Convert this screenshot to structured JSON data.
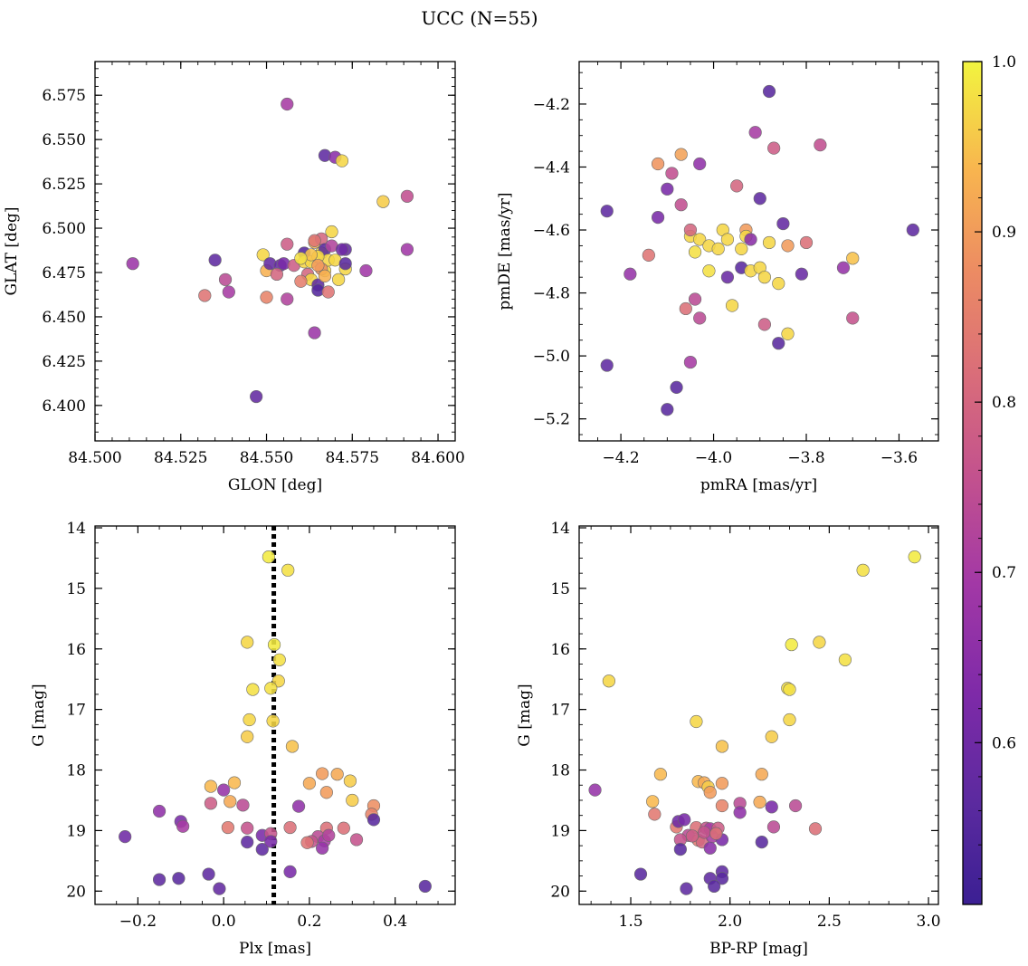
{
  "chart_title": "UCC (N=55)",
  "colorbar": {
    "range": [
      0.505,
      1.0
    ],
    "ticks": [
      0.6,
      0.7,
      0.8,
      0.9,
      1.0
    ],
    "tick_labels": [
      "0.6",
      "0.7",
      "0.8",
      "0.9",
      "1.0"
    ],
    "colormap": "plasma"
  },
  "chart_data": [
    {
      "type": "scatter",
      "xlabel": "GLON [deg]",
      "ylabel": "GLAT [deg]",
      "xlim": [
        84.5,
        84.605
      ],
      "ylim": [
        6.38,
        6.594
      ],
      "xticks": [
        84.5,
        84.525,
        84.55,
        84.575,
        84.6
      ],
      "xtick_labels": [
        "84.500",
        "84.525",
        "84.550",
        "84.575",
        "84.600"
      ],
      "xminor": 0.005,
      "yticks": [
        6.4,
        6.425,
        6.45,
        6.475,
        6.5,
        6.525,
        6.55,
        6.575
      ],
      "ytick_labels": [
        "6.400",
        "6.425",
        "6.450",
        "6.475",
        "6.500",
        "6.525",
        "6.550",
        "6.575"
      ],
      "yminor": 0.005,
      "invert_y": false,
      "points": [
        [
          84.511,
          6.48,
          0.68
        ],
        [
          84.535,
          6.482,
          0.57
        ],
        [
          84.538,
          6.471,
          0.74
        ],
        [
          84.539,
          6.464,
          0.7
        ],
        [
          84.532,
          6.462,
          0.83
        ],
        [
          84.547,
          6.405,
          0.58
        ],
        [
          84.556,
          6.57,
          0.7
        ],
        [
          84.55,
          6.461,
          0.86
        ],
        [
          84.55,
          6.476,
          0.93
        ],
        [
          84.549,
          6.485,
          0.97
        ],
        [
          84.551,
          6.48,
          0.58
        ],
        [
          84.554,
          6.479,
          0.58
        ],
        [
          84.553,
          6.474,
          0.8
        ],
        [
          84.556,
          6.491,
          0.78
        ],
        [
          84.556,
          6.46,
          0.72
        ],
        [
          84.555,
          6.48,
          0.62
        ],
        [
          84.558,
          6.479,
          0.78
        ],
        [
          84.561,
          6.486,
          0.55
        ],
        [
          84.561,
          6.481,
          0.97
        ],
        [
          84.562,
          6.474,
          0.8
        ],
        [
          84.563,
          6.471,
          0.97
        ],
        [
          84.563,
          6.481,
          0.97
        ],
        [
          84.564,
          6.492,
          0.93
        ],
        [
          84.564,
          6.441,
          0.68
        ],
        [
          84.565,
          6.468,
          0.57
        ],
        [
          84.565,
          6.465,
          0.55
        ],
        [
          84.566,
          6.494,
          0.8
        ],
        [
          84.566,
          6.486,
          0.97
        ],
        [
          84.567,
          6.541,
          0.57
        ],
        [
          84.567,
          6.476,
          0.97
        ],
        [
          84.567,
          6.488,
          0.56
        ],
        [
          84.568,
          6.482,
          0.97
        ],
        [
          84.568,
          6.464,
          0.83
        ],
        [
          84.569,
          6.498,
          0.97
        ],
        [
          84.57,
          6.54,
          0.65
        ],
        [
          84.57,
          6.482,
          0.97
        ],
        [
          84.571,
          6.471,
          0.97
        ],
        [
          84.572,
          6.538,
          0.97
        ],
        [
          84.573,
          6.477,
          0.97
        ],
        [
          84.573,
          6.488,
          0.58
        ],
        [
          84.573,
          6.48,
          0.56
        ],
        [
          84.579,
          6.476,
          0.69
        ],
        [
          84.584,
          6.515,
          0.96
        ],
        [
          84.591,
          6.518,
          0.75
        ],
        [
          84.591,
          6.488,
          0.69
        ],
        [
          84.565,
          6.484,
          0.97
        ],
        [
          84.56,
          6.47,
          0.85
        ],
        [
          84.569,
          6.49,
          0.72
        ],
        [
          84.566,
          6.477,
          0.88
        ],
        [
          84.563,
          6.485,
          0.95
        ],
        [
          84.56,
          6.483,
          0.98
        ],
        [
          84.572,
          6.488,
          0.6
        ],
        [
          84.567,
          6.473,
          0.93
        ],
        [
          84.565,
          6.479,
          0.9
        ],
        [
          84.564,
          6.493,
          0.83
        ]
      ]
    },
    {
      "type": "scatter",
      "xlabel": "pmRA [mas/yr]",
      "ylabel": "pmDE [mas/yr]",
      "xlim": [
        -4.29,
        -3.515
      ],
      "ylim": [
        -5.27,
        -4.065
      ],
      "xticks": [
        -4.2,
        -4.0,
        -3.8,
        -3.6
      ],
      "xtick_labels": [
        "−4.2",
        "−4.0",
        "−3.8",
        "−3.6"
      ],
      "xminor": 0.05,
      "yticks": [
        -5.2,
        -5.0,
        -4.8,
        -4.6,
        -4.4,
        -4.2
      ],
      "ytick_labels": [
        "−5.2",
        "−5.0",
        "−4.8",
        "−4.6",
        "−4.4",
        "−4.2"
      ],
      "yminor": 0.05,
      "invert_y": false,
      "points": [
        [
          -4.23,
          -4.54,
          0.57
        ],
        [
          -4.23,
          -5.03,
          0.57
        ],
        [
          -4.18,
          -4.74,
          0.67
        ],
        [
          -4.14,
          -4.68,
          0.83
        ],
        [
          -4.12,
          -4.39,
          0.89
        ],
        [
          -4.12,
          -4.56,
          0.62
        ],
        [
          -4.1,
          -4.47,
          0.62
        ],
        [
          -4.1,
          -5.17,
          0.56
        ],
        [
          -4.08,
          -5.1,
          0.56
        ],
        [
          -4.09,
          -4.42,
          0.75
        ],
        [
          -4.07,
          -4.36,
          0.91
        ],
        [
          -4.07,
          -4.52,
          0.75
        ],
        [
          -4.06,
          -4.85,
          0.82
        ],
        [
          -4.05,
          -4.62,
          0.97
        ],
        [
          -4.05,
          -4.6,
          0.8
        ],
        [
          -4.04,
          -4.67,
          0.98
        ],
        [
          -4.05,
          -5.02,
          0.7
        ],
        [
          -4.03,
          -4.63,
          0.97
        ],
        [
          -4.04,
          -4.82,
          0.74
        ],
        [
          -4.03,
          -4.88,
          0.74
        ],
        [
          -4.03,
          -4.39,
          0.66
        ],
        [
          -4.01,
          -4.73,
          0.98
        ],
        [
          -4.01,
          -4.65,
          0.97
        ],
        [
          -3.99,
          -4.66,
          0.97
        ],
        [
          -3.98,
          -4.6,
          0.97
        ],
        [
          -3.97,
          -4.75,
          0.59
        ],
        [
          -3.97,
          -4.63,
          0.97
        ],
        [
          -3.96,
          -4.84,
          0.97
        ],
        [
          -3.95,
          -4.46,
          0.8
        ],
        [
          -3.94,
          -4.66,
          0.97
        ],
        [
          -3.94,
          -4.72,
          0.56
        ],
        [
          -3.93,
          -4.6,
          0.9
        ],
        [
          -3.93,
          -4.62,
          0.97
        ],
        [
          -3.92,
          -4.73,
          0.97
        ],
        [
          -3.92,
          -4.63,
          0.65
        ],
        [
          -3.91,
          -4.29,
          0.7
        ],
        [
          -3.9,
          -4.72,
          0.97
        ],
        [
          -3.9,
          -4.5,
          0.57
        ],
        [
          -3.89,
          -4.9,
          0.78
        ],
        [
          -3.89,
          -4.75,
          0.97
        ],
        [
          -3.88,
          -4.16,
          0.56
        ],
        [
          -3.88,
          -4.64,
          0.97
        ],
        [
          -3.87,
          -4.34,
          0.78
        ],
        [
          -3.86,
          -4.77,
          0.97
        ],
        [
          -3.86,
          -4.96,
          0.56
        ],
        [
          -3.85,
          -4.58,
          0.58
        ],
        [
          -3.84,
          -4.65,
          0.9
        ],
        [
          -3.84,
          -4.93,
          0.97
        ],
        [
          -3.81,
          -4.74,
          0.59
        ],
        [
          -3.8,
          -4.64,
          0.82
        ],
        [
          -3.77,
          -4.33,
          0.75
        ],
        [
          -3.72,
          -4.72,
          0.67
        ],
        [
          -3.7,
          -4.88,
          0.76
        ],
        [
          -3.7,
          -4.69,
          0.95
        ],
        [
          -3.57,
          -4.6,
          0.57
        ]
      ]
    },
    {
      "type": "scatter",
      "xlabel": "Plx [mas]",
      "ylabel": "G [mag]",
      "xlim": [
        -0.3,
        0.54
      ],
      "ylim": [
        20.22,
        13.97
      ],
      "xticks": [
        -0.2,
        0.0,
        0.2,
        0.4
      ],
      "xtick_labels": [
        "−0.2",
        "0.0",
        "0.2",
        "0.4"
      ],
      "xminor": 0.05,
      "yticks": [
        14,
        15,
        16,
        17,
        18,
        19,
        20
      ],
      "ytick_labels": [
        "14",
        "15",
        "16",
        "17",
        "18",
        "19",
        "20"
      ],
      "yminor": 0.25,
      "invert_y": true,
      "vline": 0.117,
      "points": [
        [
          0.105,
          14.48,
          0.99
        ],
        [
          0.15,
          14.7,
          0.98
        ],
        [
          0.055,
          15.89,
          0.97
        ],
        [
          0.118,
          15.93,
          0.99
        ],
        [
          0.13,
          16.18,
          0.98
        ],
        [
          0.128,
          16.53,
          0.97
        ],
        [
          0.068,
          16.67,
          0.98
        ],
        [
          0.11,
          16.65,
          0.98
        ],
        [
          0.06,
          17.17,
          0.97
        ],
        [
          0.115,
          17.19,
          0.97
        ],
        [
          0.055,
          17.45,
          0.96
        ],
        [
          0.16,
          17.61,
          0.95
        ],
        [
          -0.03,
          18.27,
          0.94
        ],
        [
          0.025,
          18.21,
          0.94
        ],
        [
          0.015,
          18.52,
          0.92
        ],
        [
          0.2,
          18.22,
          0.92
        ],
        [
          0.23,
          18.06,
          0.9
        ],
        [
          0.265,
          18.07,
          0.92
        ],
        [
          0.295,
          18.18,
          0.96
        ],
        [
          0.24,
          18.37,
          0.9
        ],
        [
          0.3,
          18.5,
          0.96
        ],
        [
          -0.03,
          18.55,
          0.78
        ],
        [
          0.175,
          18.6,
          0.66
        ],
        [
          0.35,
          18.59,
          0.88
        ],
        [
          0.345,
          18.73,
          0.86
        ],
        [
          -0.15,
          18.68,
          0.66
        ],
        [
          -0.1,
          18.85,
          0.62
        ],
        [
          -0.095,
          18.93,
          0.7
        ],
        [
          0.01,
          18.95,
          0.84
        ],
        [
          0.055,
          18.96,
          0.76
        ],
        [
          0.155,
          18.95,
          0.82
        ],
        [
          0.24,
          18.96,
          0.82
        ],
        [
          0.28,
          18.96,
          0.82
        ],
        [
          0.35,
          18.82,
          0.56
        ],
        [
          -0.23,
          19.1,
          0.6
        ],
        [
          0.045,
          18.58,
          0.74
        ],
        [
          0.0,
          18.33,
          0.67
        ],
        [
          0.09,
          19.08,
          0.62
        ],
        [
          0.11,
          19.05,
          0.76
        ],
        [
          0.22,
          19.1,
          0.74
        ],
        [
          0.205,
          19.18,
          0.76
        ],
        [
          0.235,
          19.17,
          0.7
        ],
        [
          0.195,
          19.2,
          0.83
        ],
        [
          0.31,
          19.15,
          0.76
        ],
        [
          0.055,
          19.19,
          0.57
        ],
        [
          0.09,
          19.31,
          0.57
        ],
        [
          0.11,
          19.18,
          0.62
        ],
        [
          0.23,
          19.29,
          0.67
        ],
        [
          0.155,
          19.68,
          0.62
        ],
        [
          -0.15,
          19.81,
          0.57
        ],
        [
          -0.105,
          19.79,
          0.56
        ],
        [
          -0.035,
          19.72,
          0.57
        ],
        [
          -0.01,
          19.96,
          0.58
        ],
        [
          0.47,
          19.92,
          0.56
        ],
        [
          0.245,
          19.08,
          0.72
        ]
      ]
    },
    {
      "type": "scatter",
      "xlabel": "BP-RP [mag]",
      "ylabel": "G [mag]",
      "xlim": [
        1.24,
        3.05
      ],
      "ylim": [
        20.22,
        13.97
      ],
      "xticks": [
        1.5,
        2.0,
        2.5,
        3.0
      ],
      "xtick_labels": [
        "1.5",
        "2.0",
        "2.5",
        "3.0"
      ],
      "xminor": 0.1,
      "yticks": [
        14,
        15,
        16,
        17,
        18,
        19,
        20
      ],
      "ytick_labels": [
        "14",
        "15",
        "16",
        "17",
        "18",
        "19",
        "20"
      ],
      "yminor": 0.25,
      "invert_y": true,
      "points": [
        [
          2.93,
          14.48,
          0.99
        ],
        [
          2.67,
          14.7,
          0.98
        ],
        [
          2.45,
          15.89,
          0.97
        ],
        [
          2.31,
          15.93,
          0.99
        ],
        [
          2.58,
          16.18,
          0.98
        ],
        [
          1.39,
          16.53,
          0.97
        ],
        [
          2.29,
          16.65,
          0.98
        ],
        [
          2.3,
          16.67,
          0.98
        ],
        [
          1.83,
          17.2,
          0.97
        ],
        [
          2.3,
          17.17,
          0.97
        ],
        [
          1.96,
          17.61,
          0.95
        ],
        [
          2.21,
          17.45,
          0.96
        ],
        [
          1.32,
          18.33,
          0.67
        ],
        [
          1.61,
          18.52,
          0.94
        ],
        [
          1.65,
          18.07,
          0.94
        ],
        [
          1.84,
          18.19,
          0.94
        ],
        [
          1.87,
          18.21,
          0.92
        ],
        [
          1.89,
          18.28,
          0.96
        ],
        [
          1.9,
          18.37,
          0.9
        ],
        [
          1.96,
          18.22,
          0.9
        ],
        [
          2.16,
          18.07,
          0.92
        ],
        [
          2.15,
          18.53,
          0.92
        ],
        [
          1.62,
          18.73,
          0.84
        ],
        [
          1.73,
          18.94,
          0.84
        ],
        [
          1.74,
          18.85,
          0.6
        ],
        [
          1.77,
          18.82,
          0.62
        ],
        [
          1.96,
          18.59,
          0.86
        ],
        [
          2.05,
          18.55,
          0.74
        ],
        [
          2.05,
          18.7,
          0.66
        ],
        [
          2.33,
          18.59,
          0.74
        ],
        [
          2.22,
          18.94,
          0.74
        ],
        [
          2.43,
          18.97,
          0.82
        ],
        [
          1.83,
          18.95,
          0.82
        ],
        [
          1.88,
          18.96,
          0.76
        ],
        [
          1.9,
          18.97,
          0.7
        ],
        [
          1.94,
          18.96,
          0.78
        ],
        [
          1.79,
          19.08,
          0.74
        ],
        [
          1.75,
          19.15,
          0.76
        ],
        [
          1.84,
          19.16,
          0.84
        ],
        [
          1.86,
          19.19,
          0.8
        ],
        [
          1.91,
          19.1,
          0.7
        ],
        [
          1.96,
          19.15,
          0.62
        ],
        [
          2.21,
          18.61,
          0.62
        ],
        [
          2.16,
          19.19,
          0.56
        ],
        [
          1.75,
          19.31,
          0.56
        ],
        [
          1.9,
          19.29,
          0.65
        ],
        [
          1.55,
          19.72,
          0.56
        ],
        [
          1.96,
          19.68,
          0.57
        ],
        [
          1.9,
          19.79,
          0.57
        ],
        [
          1.96,
          19.79,
          0.56
        ],
        [
          1.78,
          19.96,
          0.57
        ],
        [
          1.92,
          19.92,
          0.56
        ],
        [
          1.81,
          19.09,
          0.78
        ],
        [
          1.87,
          19.03,
          0.76
        ],
        [
          1.93,
          19.05,
          0.82
        ]
      ]
    }
  ]
}
